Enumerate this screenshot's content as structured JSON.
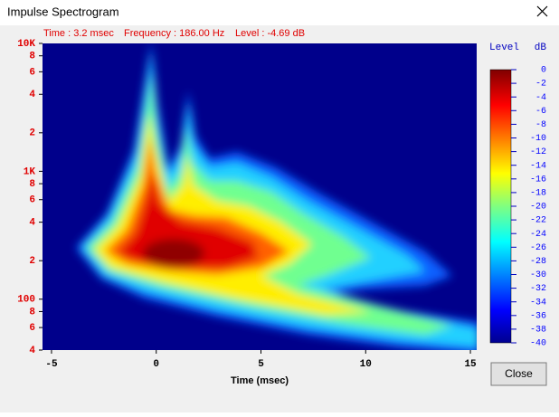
{
  "window": {
    "title": "Impulse Spectrogram",
    "close_button": "Close"
  },
  "chart_data": {
    "type": "spectrogram",
    "status": [
      "Time : 3.2 msec",
      "Frequency : 186.00 Hz",
      "Level : -4.69 dB"
    ],
    "xlabel": "Time (msec)",
    "xlim": [
      -5.43,
      15.3
    ],
    "xticks": [
      -5,
      0,
      5,
      10,
      15
    ],
    "yscale": "log",
    "ylim": [
      40,
      10000
    ],
    "yticks": [
      {
        "value": 40,
        "label": "4"
      },
      {
        "value": 60,
        "label": "6"
      },
      {
        "value": 80,
        "label": "8"
      },
      100,
      {
        "value": 200,
        "label": "2"
      },
      {
        "value": 400,
        "label": "4"
      },
      {
        "value": 600,
        "label": "6"
      },
      {
        "value": 800,
        "label": "8"
      },
      {
        "value": 1000,
        "label": "1K"
      },
      {
        "value": 2000,
        "label": "2"
      },
      {
        "value": 4000,
        "label": "4"
      },
      {
        "value": 6000,
        "label": "6"
      },
      {
        "value": 8000,
        "label": "8"
      },
      {
        "value": 10000,
        "label": "10K"
      }
    ],
    "colorbar": {
      "title": "Level",
      "unit": "dB",
      "lim": [
        -40,
        0
      ],
      "ticks": [
        0,
        -2,
        -4,
        -6,
        -8,
        -10,
        -12,
        -14,
        -16,
        -18,
        -20,
        -22,
        -24,
        -26,
        -28,
        -30,
        -32,
        -34,
        -36,
        -38,
        -40
      ]
    }
  }
}
